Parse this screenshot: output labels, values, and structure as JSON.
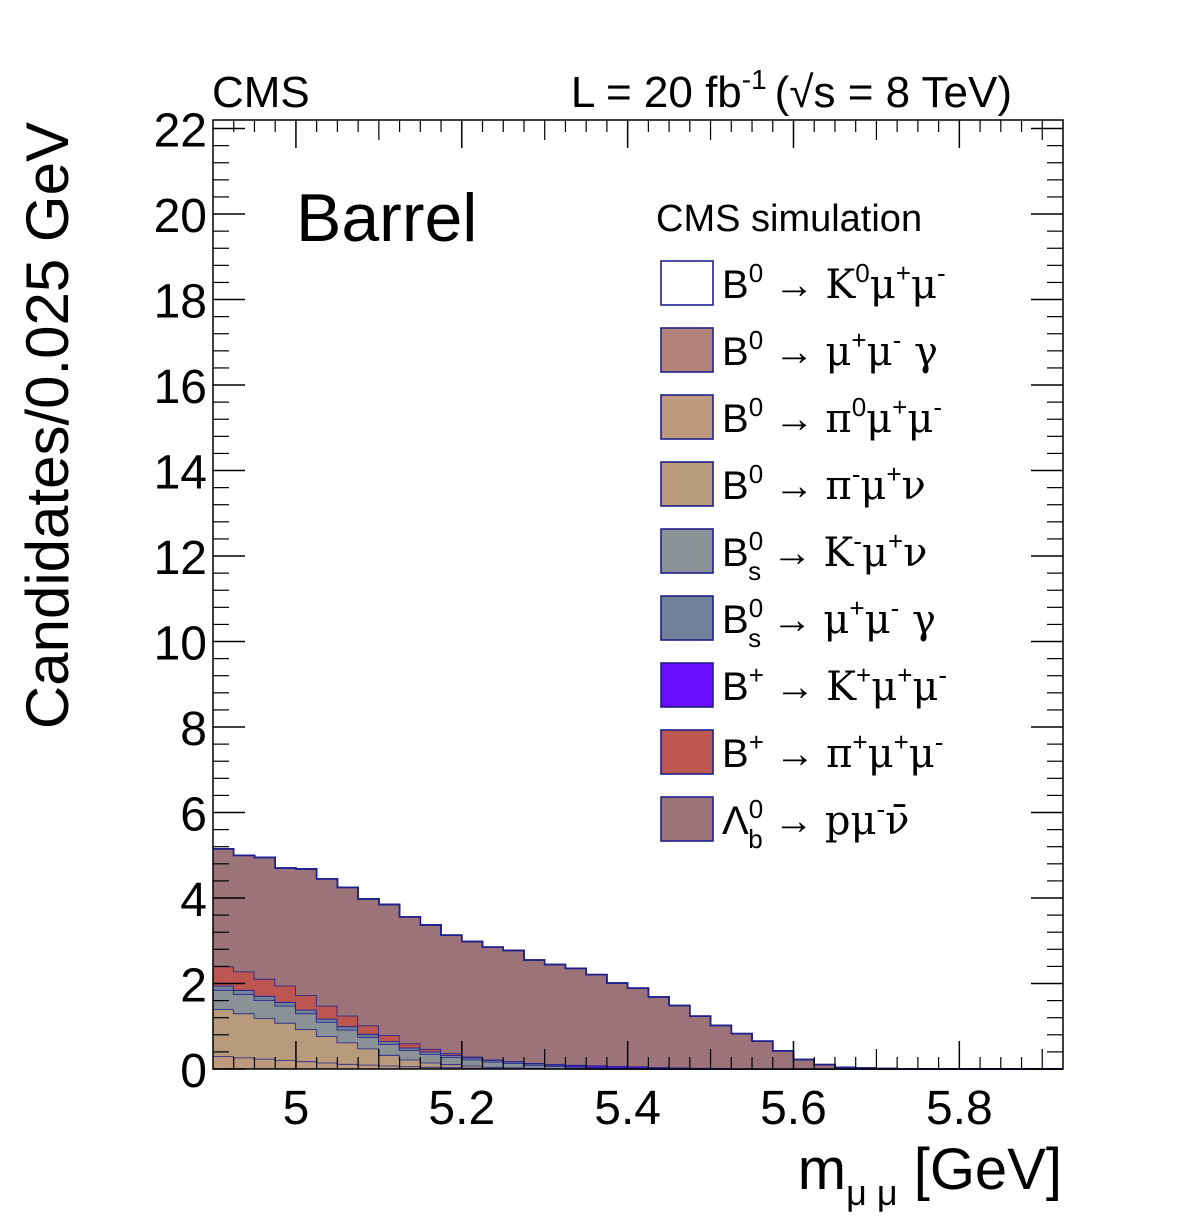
{
  "chart_data": {
    "type": "stacked-histogram",
    "header_left": "CMS",
    "header_right": {
      "lumi_prefix": "L = 20 fb",
      "lumi_exp": "-1",
      "energy_open": "(",
      "sqrt": "√",
      "energy_body": "s = 8 TeV)"
    },
    "region_label": "Barrel",
    "legend_title": "CMS simulation",
    "xlabel": {
      "main": "m",
      "sub": "μ μ",
      "unit": " [GeV]"
    },
    "ylabel": "Candidates/0.025 GeV",
    "xlim": [
      4.9,
      5.925
    ],
    "ylim": [
      0,
      22.2
    ],
    "bin_width": 0.025,
    "x_ticks": [
      "5",
      "5.2",
      "5.4",
      "5.6",
      "5.8"
    ],
    "y_ticks": [
      "0",
      "2",
      "4",
      "6",
      "8",
      "10",
      "12",
      "14",
      "16",
      "18",
      "20",
      "22"
    ],
    "stack_line_color": "#20208c",
    "series": [
      {
        "name": "B0 -> pi0 mu+ mu-",
        "color": "#bd9a7e",
        "values": [
          0.3,
          0.27,
          0.24,
          0.21,
          0.18,
          0.15,
          0.12,
          0.1,
          0.08,
          0.06,
          0.05,
          0.04,
          0.03,
          0.02,
          0.015,
          0.01,
          0.005,
          0,
          0,
          0,
          0,
          0,
          0,
          0,
          0,
          0,
          0,
          0,
          0,
          0,
          0,
          0,
          0,
          0,
          0,
          0,
          0,
          0,
          0,
          0,
          0
        ]
      },
      {
        "name": "B0 -> pi- mu+ nu",
        "color": "#b89b7c",
        "values": [
          1.1,
          1.03,
          0.95,
          0.87,
          0.75,
          0.62,
          0.5,
          0.38,
          0.25,
          0.16,
          0.1,
          0.07,
          0.05,
          0.03,
          0.02,
          0.015,
          0.01,
          0.005,
          0,
          0,
          0,
          0,
          0,
          0,
          0,
          0,
          0,
          0,
          0,
          0,
          0,
          0,
          0,
          0,
          0,
          0,
          0,
          0,
          0,
          0,
          0
        ]
      },
      {
        "name": "Bs0 -> K- mu+ nu",
        "color": "#8a9298",
        "values": [
          0.45,
          0.45,
          0.42,
          0.4,
          0.37,
          0.33,
          0.3,
          0.27,
          0.25,
          0.22,
          0.2,
          0.17,
          0.14,
          0.12,
          0.1,
          0.07,
          0.05,
          0.03,
          0.02,
          0.01,
          0.005,
          0,
          0,
          0,
          0,
          0,
          0,
          0,
          0,
          0,
          0,
          0,
          0,
          0,
          0,
          0,
          0,
          0,
          0,
          0,
          0
        ]
      },
      {
        "name": "Bs0 -> mu+ mu- gamma",
        "color": "#70819a",
        "values": [
          0.1,
          0.1,
          0.1,
          0.09,
          0.09,
          0.08,
          0.08,
          0.07,
          0.07,
          0.06,
          0.06,
          0.05,
          0.05,
          0.04,
          0.04,
          0.035,
          0.03,
          0.03,
          0.025,
          0.02,
          0.015,
          0.01,
          0.005,
          0,
          0,
          0,
          0,
          0,
          0,
          0,
          0,
          0,
          0,
          0,
          0,
          0,
          0,
          0,
          0,
          0,
          0
        ]
      },
      {
        "name": "B+ -> K+ mu+ mu-",
        "color": "#6a0dff",
        "values": [
          0,
          0,
          0,
          0,
          0,
          0,
          0,
          0,
          0,
          0,
          0,
          0,
          0,
          0,
          0.005,
          0.01,
          0.02,
          0.03,
          0.04,
          0.04,
          0.04,
          0.035,
          0.03,
          0.025,
          0.02,
          0.015,
          0.01,
          0.005,
          0,
          0,
          0,
          0,
          0,
          0,
          0,
          0,
          0,
          0,
          0,
          0,
          0
        ]
      },
      {
        "name": "B+ -> pi+ mu+ mu-",
        "color": "#bd5650",
        "values": [
          0.45,
          0.43,
          0.4,
          0.38,
          0.34,
          0.3,
          0.25,
          0.2,
          0.14,
          0.1,
          0.06,
          0.04,
          0.02,
          0.01,
          0.005,
          0,
          0,
          0,
          0,
          0,
          0,
          0,
          0,
          0,
          0,
          0,
          0,
          0,
          0,
          0,
          0,
          0,
          0,
          0,
          0,
          0,
          0,
          0,
          0,
          0,
          0
        ]
      },
      {
        "name": "Lb0 -> p mu- nubar",
        "color": "#9b7378",
        "values": [
          2.75,
          2.72,
          2.84,
          2.75,
          2.95,
          2.97,
          3.0,
          2.96,
          3.06,
          2.96,
          2.9,
          2.76,
          2.69,
          2.63,
          2.59,
          2.41,
          2.33,
          2.26,
          2.12,
          1.94,
          1.83,
          1.64,
          1.45,
          1.21,
          1.0,
          0.81,
          0.64,
          0.42,
          0.22,
          0.1,
          0.04,
          0.02,
          0.01,
          0.005,
          0,
          0,
          0,
          0,
          0,
          0,
          0
        ]
      },
      {
        "name": "B0 -> mu+ mu- gamma",
        "color": "#b4837a",
        "values": [
          0,
          0,
          0,
          0,
          0,
          0,
          0,
          0,
          0,
          0,
          0,
          0,
          0,
          0,
          0,
          0,
          0,
          0,
          0,
          0,
          0,
          0,
          0,
          0,
          0,
          0,
          0,
          0,
          0,
          0,
          0,
          0,
          0,
          0,
          0,
          0,
          0,
          0,
          0,
          0,
          0
        ]
      },
      {
        "name": "B0 -> K0 mu+ mu-",
        "color": "#ffffff",
        "values": [
          0,
          0,
          0,
          0,
          0,
          0,
          0,
          0,
          0,
          0,
          0,
          0,
          0,
          0,
          0,
          0,
          0,
          0,
          0,
          0,
          0,
          0,
          0,
          0,
          0,
          0,
          0,
          0,
          0,
          0,
          0,
          0,
          0,
          0,
          0,
          0,
          0,
          0,
          0,
          0,
          0
        ]
      }
    ],
    "legend": [
      {
        "color": "#ffffff",
        "parent": "B",
        "parent_sup": "0",
        "parent_sub": "",
        "arrow": "→",
        "products": [
          [
            "K",
            "0"
          ],
          [
            "μ",
            "+"
          ],
          [
            "μ",
            "-"
          ]
        ]
      },
      {
        "color": "#b4837a",
        "parent": "B",
        "parent_sup": "0",
        "parent_sub": "",
        "arrow": "→",
        "products": [
          [
            "μ",
            "+"
          ],
          [
            "μ",
            "-"
          ],
          [
            " γ",
            ""
          ]
        ]
      },
      {
        "color": "#bd9a7e",
        "parent": "B",
        "parent_sup": "0",
        "parent_sub": "",
        "arrow": "→",
        "products": [
          [
            "π",
            "0"
          ],
          [
            "μ",
            "+"
          ],
          [
            "μ",
            "-"
          ]
        ]
      },
      {
        "color": "#b89b7c",
        "parent": "B",
        "parent_sup": "0",
        "parent_sub": "",
        "arrow": "→",
        "products": [
          [
            "π",
            "-"
          ],
          [
            "μ",
            "+"
          ],
          [
            "ν",
            ""
          ]
        ]
      },
      {
        "color": "#8a9298",
        "parent": "B",
        "parent_sup": "0",
        "parent_sub": "s",
        "arrow": "→",
        "products": [
          [
            "K",
            "-"
          ],
          [
            "μ",
            "+"
          ],
          [
            "ν",
            ""
          ]
        ]
      },
      {
        "color": "#70819a",
        "parent": "B",
        "parent_sup": "0",
        "parent_sub": "s",
        "arrow": "→",
        "products": [
          [
            "μ",
            "+"
          ],
          [
            "μ",
            "-"
          ],
          [
            " γ",
            ""
          ]
        ]
      },
      {
        "color": "#6a0dff",
        "parent": "B",
        "parent_sup": "+",
        "parent_sub": "",
        "arrow": "→",
        "products": [
          [
            "K",
            "+"
          ],
          [
            "μ",
            "+"
          ],
          [
            "μ",
            "-"
          ]
        ]
      },
      {
        "color": "#bd5650",
        "parent": "B",
        "parent_sup": "+",
        "parent_sub": "",
        "arrow": "→",
        "products": [
          [
            "π",
            "+"
          ],
          [
            "μ",
            "+"
          ],
          [
            "μ",
            "-"
          ]
        ]
      },
      {
        "color": "#9b7378",
        "parent": "Λ",
        "parent_sup": "0",
        "parent_sub": "b",
        "arrow": "→",
        "products": [
          [
            "p",
            ""
          ],
          [
            "μ",
            "-"
          ],
          [
            "ν̄",
            ""
          ]
        ]
      }
    ]
  }
}
